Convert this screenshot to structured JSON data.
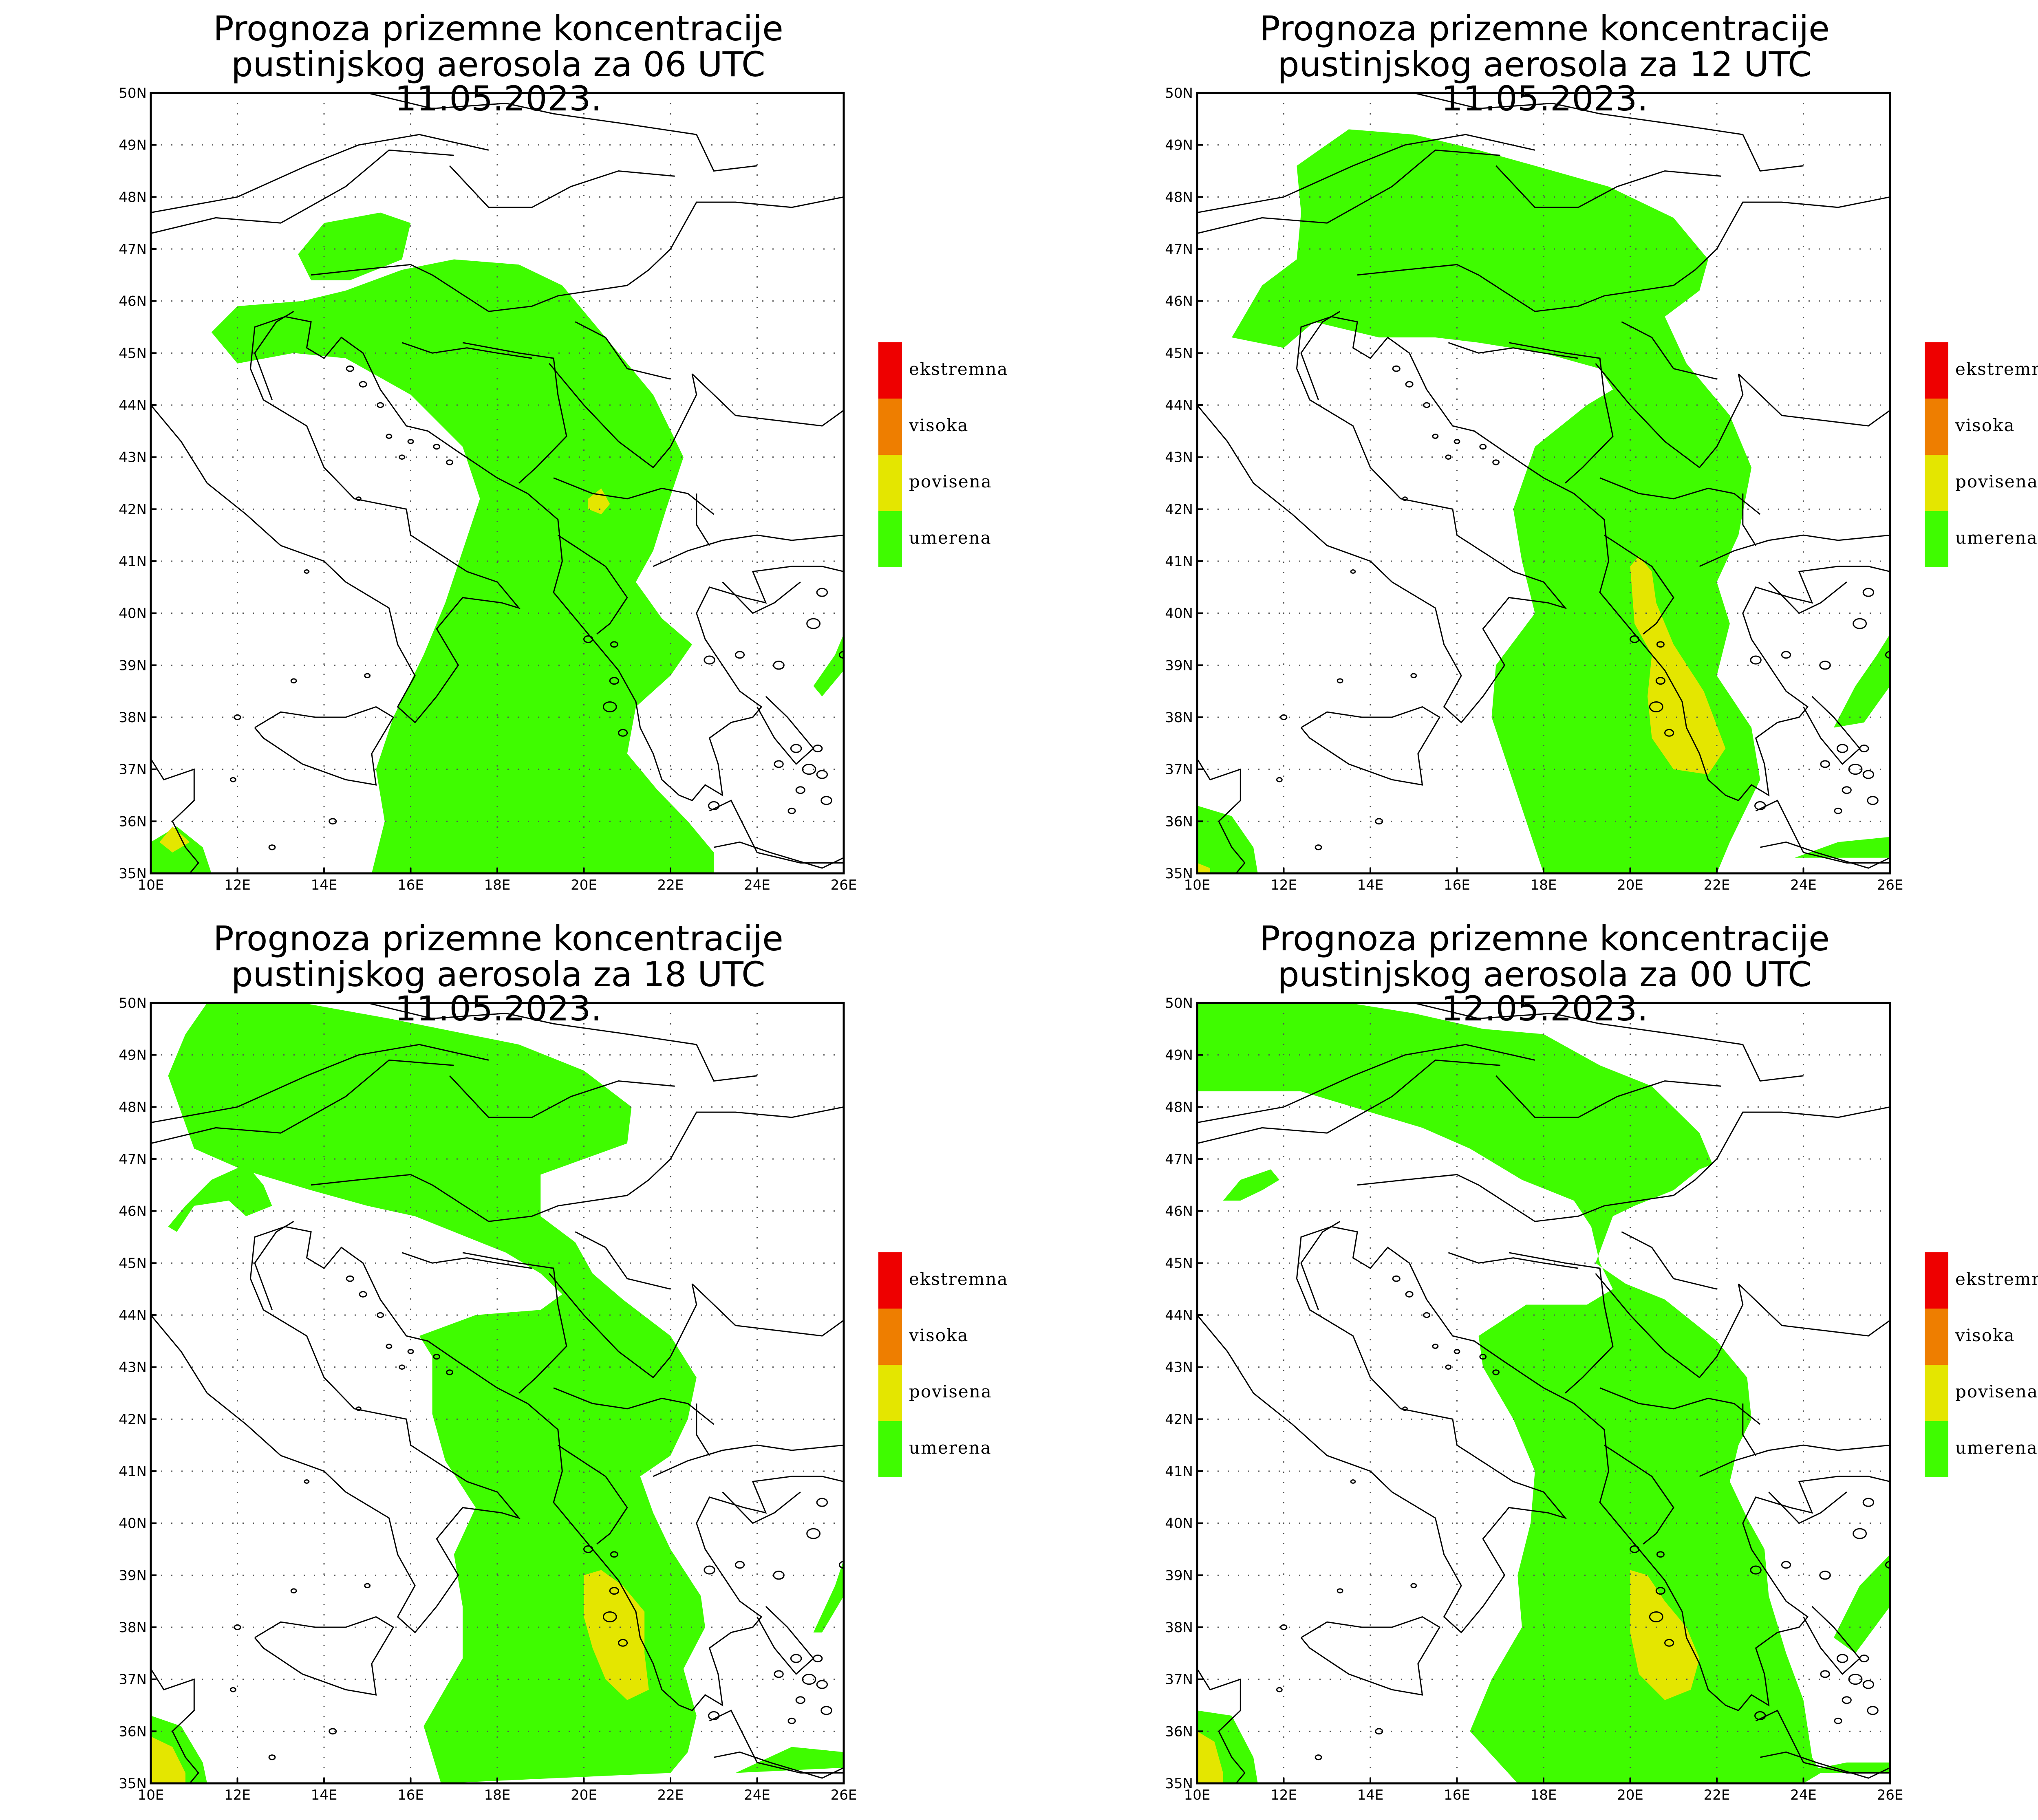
{
  "colors": {
    "umerena": "#3ffc00",
    "povisena": "#e4e600",
    "visoka": "#ee7e00",
    "ekstremna": "#ee0000",
    "border": "#000000"
  },
  "legend": [
    "ekstremna",
    "visoka",
    "povisena",
    "umerena"
  ],
  "axes": {
    "lat_labels": [
      "50N",
      "49N",
      "48N",
      "47N",
      "46N",
      "45N",
      "44N",
      "43N",
      "42N",
      "41N",
      "40N",
      "39N",
      "38N",
      "37N",
      "36N",
      "35N"
    ],
    "lon_labels": [
      "10E",
      "12E",
      "14E",
      "16E",
      "18E",
      "20E",
      "22E",
      "24E",
      "26E"
    ],
    "lat_range": [
      35,
      50
    ],
    "lon_range": [
      10,
      26
    ]
  },
  "panels": [
    {
      "title_line1": "Prognoza prizemne koncentracije",
      "title_line2": "pustinjskog aerosola za 06 UTC 11.05.2023."
    },
    {
      "title_line1": "Prognoza prizemne koncentracije",
      "title_line2": "pustinjskog aerosola za 12 UTC 11.05.2023."
    },
    {
      "title_line1": "Prognoza prizemne koncentracije",
      "title_line2": "pustinjskog aerosola za 18 UTC 11.05.2023."
    },
    {
      "title_line1": "Prognoza prizemne koncentracije",
      "title_line2": "pustinjskog aerosola za 00 UTC 12.05.2023."
    }
  ]
}
